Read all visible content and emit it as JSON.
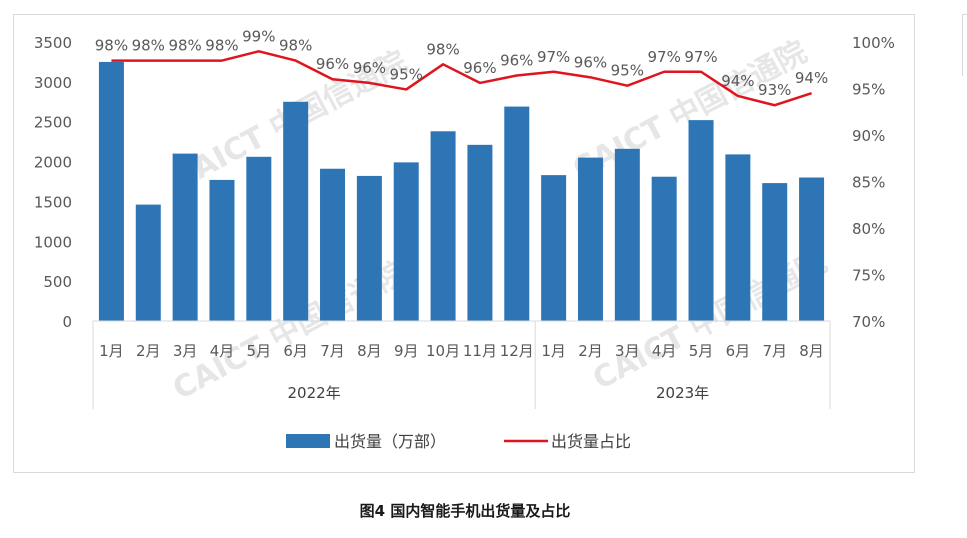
{
  "caption": "图4  国内智能手机出货量及占比",
  "watermark": "CAICT 中国信通院",
  "chart_data": {
    "type": "bar",
    "categories": [
      "1月",
      "2月",
      "3月",
      "4月",
      "5月",
      "6月",
      "7月",
      "8月",
      "9月",
      "10月",
      "11月",
      "12月",
      "1月",
      "2月",
      "3月",
      "4月",
      "5月",
      "6月",
      "7月",
      "8月"
    ],
    "year_groups": [
      {
        "label": "2022年",
        "count": 12
      },
      {
        "label": "2023年",
        "count": 8
      }
    ],
    "series": [
      {
        "name": "出货量（万部）",
        "type": "bar",
        "axis": "left",
        "color": "#2e75b6",
        "values": [
          3250,
          1460,
          2100,
          1770,
          2060,
          2750,
          1910,
          1820,
          1990,
          2380,
          2210,
          2690,
          1830,
          2050,
          2160,
          1810,
          2520,
          2090,
          1730,
          1800
        ]
      },
      {
        "name": "出货量占比",
        "type": "line",
        "axis": "right",
        "color": "#e0141e",
        "values": [
          98,
          98,
          98,
          98,
          99,
          98,
          96,
          95.6,
          94.9,
          97.6,
          95.6,
          96.4,
          96.8,
          96.2,
          95.3,
          96.8,
          96.8,
          94.2,
          93.2,
          94.5
        ],
        "labels": [
          "98%",
          "98%",
          "98%",
          "98%",
          "99%",
          "98%",
          "96%",
          "96%",
          "95%",
          "98%",
          "96%",
          "96%",
          "97%",
          "96%",
          "95%",
          "97%",
          "97%",
          "94%",
          "93%",
          "94%"
        ]
      }
    ],
    "y_left": {
      "min": 0,
      "max": 3500,
      "ticks": [
        "0",
        "500",
        "1000",
        "1500",
        "2000",
        "2500",
        "3000",
        "3500"
      ]
    },
    "y_right": {
      "min": 70,
      "max": 100,
      "ticks": [
        "70%",
        "75%",
        "80%",
        "85%",
        "90%",
        "95%",
        "100%"
      ]
    },
    "legend_position": "bottom",
    "grid": false
  }
}
